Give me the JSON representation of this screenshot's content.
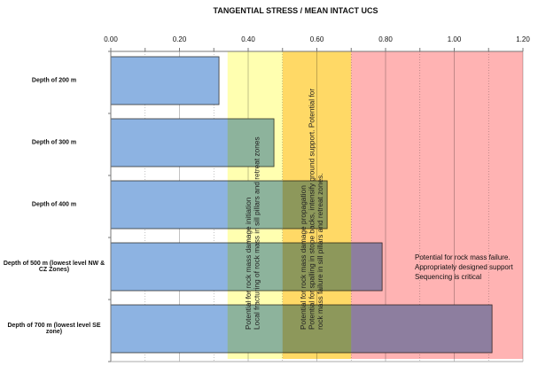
{
  "chart_data": {
    "type": "bar",
    "orientation": "horizontal",
    "title": "TANGENTIAL STRESS / MEAN INTACT UCS",
    "xlim": [
      0,
      1.2
    ],
    "xticks": [
      "0.00",
      "0.20",
      "0.40",
      "0.60",
      "0.80",
      "1.00",
      "1.20"
    ],
    "grid": true,
    "categories": [
      "Depth of 200 m",
      "Depth of 300 m",
      "Depth of 400 m",
      "Depth of 500 m (lowest level NW & CZ Zones)",
      "Depth of 700 m (lowest level SE zone)"
    ],
    "values": [
      0.315,
      0.475,
      0.63,
      0.79,
      1.11
    ],
    "bar_color": "#8db3e2",
    "zones": [
      {
        "from": 0.34,
        "to": 0.5,
        "color": "#ffffb0",
        "label": [
          "Potential for rock mass damage initiation",
          "Local fracturing of rock mass in sill pillars and retreat zones"
        ]
      },
      {
        "from": 0.5,
        "to": 0.7,
        "color": "#ffd966",
        "label": [
          "Potential for rock mass damage propagation",
          "Potential for spalling in stope backs, intensify ground support. Potential for",
          "rock mass failure in sill pillars and retreat zones."
        ]
      },
      {
        "from": 0.7,
        "to": 1.2,
        "color": "#ffb3b3",
        "label": [
          "Potential for rock mass failure.",
          "Appropriately designed support",
          "Sequencing is critical"
        ]
      }
    ]
  }
}
